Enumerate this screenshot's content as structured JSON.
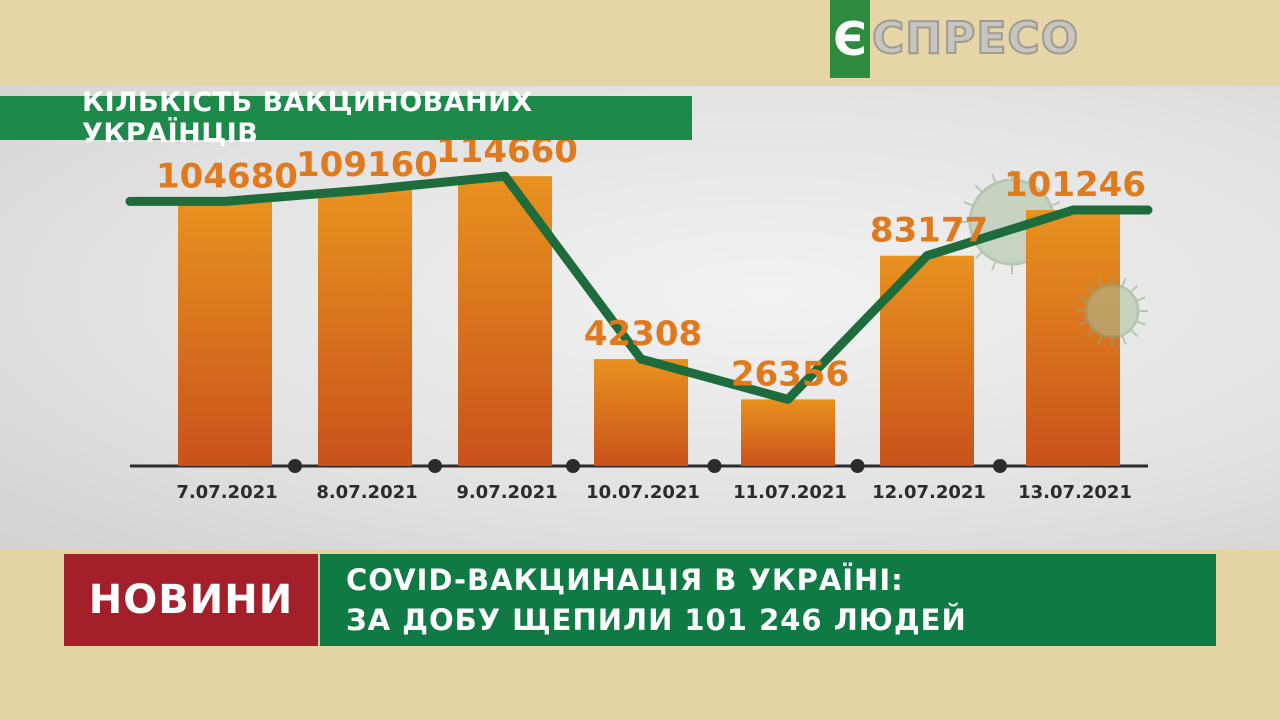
{
  "channel": {
    "logo_letter": "Є",
    "logo_text": "СПРЕСО"
  },
  "chart_data": {
    "type": "bar",
    "title": "КІЛЬКІСТЬ ВАКЦИНОВАНИХ УКРАЇНЦІВ",
    "categories": [
      "7.07.2021",
      "8.07.2021",
      "9.07.2021",
      "10.07.2021",
      "11.07.2021",
      "12.07.2021",
      "13.07.2021"
    ],
    "values": [
      104680,
      109160,
      114660,
      42308,
      26356,
      83177,
      101246
    ],
    "value_labels": [
      "104680",
      "109160",
      "114660",
      "42308",
      "26356",
      "83177",
      "101246"
    ],
    "ylim": [
      0,
      125000
    ],
    "overlay_line": true,
    "colors": {
      "bar": "#e07a1e",
      "label": "#e07a1e",
      "line": "#1e6b3c"
    }
  },
  "lower_third": {
    "tag": "НОВИНИ",
    "headline_line1": "COVID-ВАКЦИНАЦІЯ В УКРАЇНІ:",
    "headline_line2": "ЗА ДОБУ ЩЕПИЛИ  101 246 ЛЮДЕЙ",
    "colors": {
      "tag": "#a31f2a",
      "headline": "#0f7a44"
    }
  }
}
